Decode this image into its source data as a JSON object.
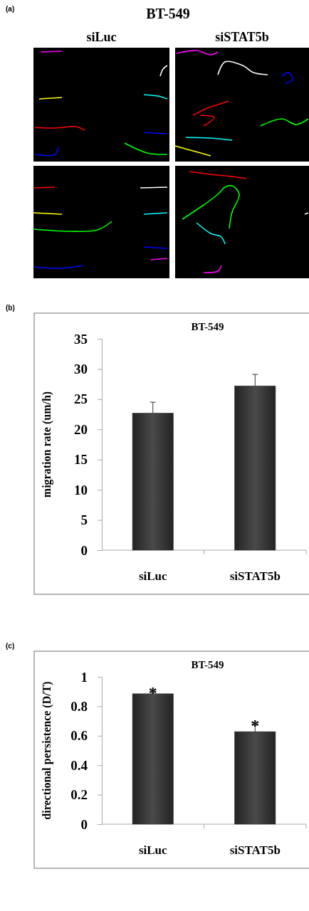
{
  "chart_data": [
    {
      "type": "other",
      "title": "BT-549",
      "annotations": [
        "(a)",
        "siLuc",
        "siSTAT5b"
      ]
    },
    {
      "type": "bar",
      "title": "BT-549",
      "ylabel": "migration rate (um/h)",
      "categories": [
        "siLuc",
        "siSTAT5b"
      ],
      "values": [
        22.7,
        27.2
      ],
      "errors": [
        [
          22.7,
          24.5
        ],
        [
          27.2,
          29.1
        ]
      ],
      "color": "#3c3c3c",
      "ylim": [
        0,
        35
      ],
      "yticks": [
        0,
        5,
        10,
        15,
        20,
        25,
        30,
        35
      ],
      "annotations": [
        "(b)"
      ]
    },
    {
      "type": "bar",
      "title": "BT-549",
      "ylabel": "directional persistence (D/T)",
      "categories": [
        "siLuc",
        "siSTAT5b"
      ],
      "values": [
        0.885,
        0.628
      ],
      "errors": [
        [
          0.885,
          0.894
        ],
        [
          0.628,
          0.672
        ]
      ],
      "color": "#3c3c3c",
      "ylim": [
        0,
        1
      ],
      "yticks": [
        0,
        0.2,
        0.4,
        0.6,
        0.8,
        1
      ],
      "annotations": [
        "(c)",
        {
          "text": "*",
          "x": "siLuc",
          "y": 0.894
        },
        {
          "text": "*",
          "x": "siSTAT5b",
          "y": 0.672
        }
      ]
    }
  ]
}
